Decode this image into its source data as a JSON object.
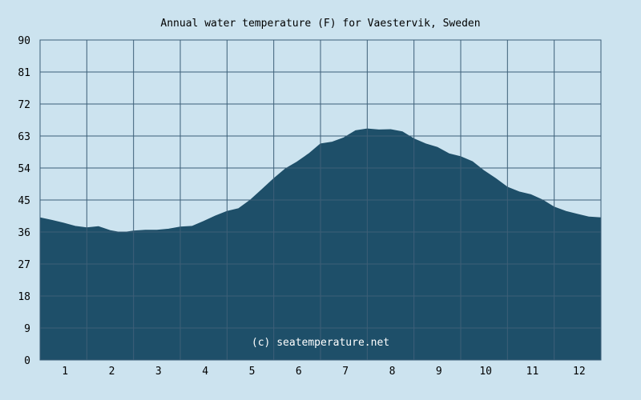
{
  "chart_data": {
    "type": "area",
    "title": "Annual water temperature (F) for Vaestervik, Sweden",
    "xlabel": "",
    "ylabel": "",
    "xlim": [
      0.5,
      12.5
    ],
    "ylim": [
      0,
      90
    ],
    "x_ticks": [
      "1",
      "2",
      "3",
      "4",
      "5",
      "6",
      "7",
      "8",
      "9",
      "10",
      "11",
      "12"
    ],
    "y_ticks": [
      "0",
      "9",
      "18",
      "27",
      "36",
      "45",
      "54",
      "63",
      "72",
      "81",
      "90"
    ],
    "grid": true,
    "fill_color": "#1e4f69",
    "plot_bg": "#cce3ef",
    "grid_color": "#3d5f78",
    "x": [
      0.5,
      0.75,
      1.0,
      1.25,
      1.5,
      1.75,
      2.0,
      2.25,
      2.5,
      2.75,
      3.0,
      3.25,
      3.5,
      3.75,
      4.0,
      4.25,
      4.5,
      4.75,
      5.0,
      5.25,
      5.5,
      5.75,
      6.0,
      6.25,
      6.5,
      6.75,
      7.0,
      7.25,
      7.5,
      7.75,
      8.0,
      8.25,
      8.5,
      8.75,
      9.0,
      9.25,
      9.5,
      9.75,
      10.0,
      10.25,
      10.5,
      10.75,
      11.0,
      11.25,
      11.5,
      11.75,
      12.0,
      12.25,
      12.5
    ],
    "values": [
      40.0,
      39.3,
      38.5,
      37.6,
      37.2,
      37.5,
      36.4,
      35.8,
      36.3,
      36.5,
      36.5,
      36.8,
      37.4,
      37.6,
      39.0,
      40.5,
      41.8,
      42.6,
      45.0,
      48.0,
      51.0,
      53.8,
      55.7,
      58.0,
      60.8,
      61.3,
      62.5,
      64.5,
      65.0,
      64.7,
      64.8,
      64.2,
      62.2,
      60.8,
      59.8,
      58.0,
      57.2,
      55.8,
      53.2,
      51.0,
      48.6,
      47.3,
      46.5,
      45.0,
      43.0,
      41.8,
      41.0,
      40.2,
      40.0
    ]
  },
  "credit": "(c) seatemperature.net"
}
